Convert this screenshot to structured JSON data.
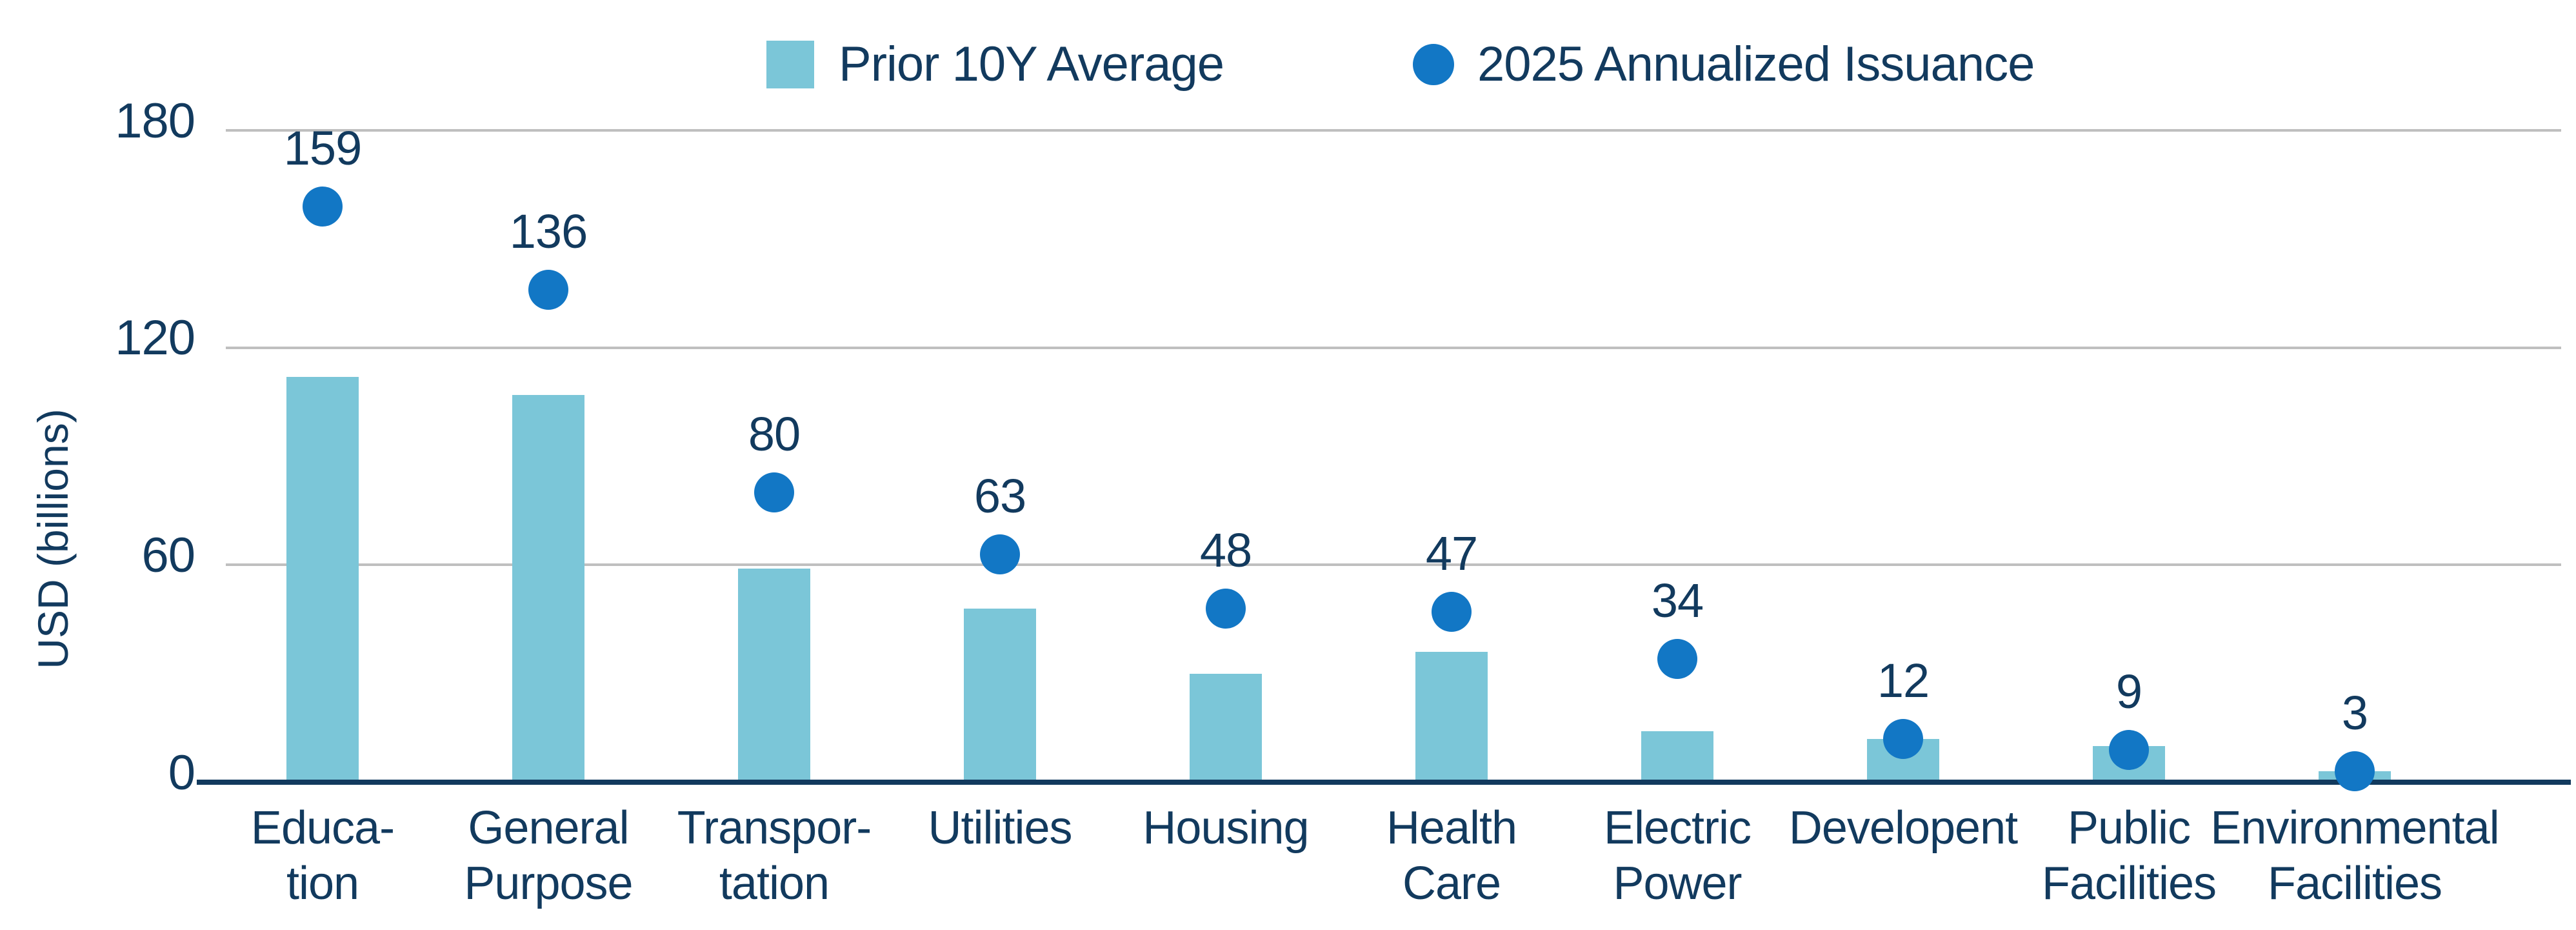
{
  "chart_data": {
    "type": "bar",
    "title": "",
    "ylabel": "USD (billions)",
    "ylim": [
      0,
      180
    ],
    "yticks": [
      0,
      60,
      120,
      180
    ],
    "grid": "horizontal",
    "legend_position": "top-center",
    "categories": [
      [
        "Educa-",
        "tion"
      ],
      [
        "General",
        "Purpose"
      ],
      [
        "Transpor-",
        "tation"
      ],
      [
        "Utilities"
      ],
      [
        "Housing"
      ],
      [
        "Health",
        "Care"
      ],
      [
        "Electric",
        "Power"
      ],
      [
        "Developent"
      ],
      [
        "Public",
        "Facilities"
      ],
      [
        "Environmental",
        "Facilities"
      ]
    ],
    "series": [
      {
        "name": "Prior 10Y Average",
        "type": "bar",
        "color": "#7BC6D8",
        "values": [
          112,
          107,
          59,
          48,
          30,
          36,
          14,
          12,
          10,
          3
        ]
      },
      {
        "name": "2025 Annualized Issuance",
        "type": "point",
        "color": "#1277C5",
        "values": [
          159,
          136,
          80,
          63,
          48,
          47,
          34,
          12,
          9,
          3
        ],
        "point_labels": [
          "159",
          "136",
          "80",
          "63",
          "48",
          "47",
          "34",
          "12",
          "9",
          "3"
        ]
      }
    ]
  },
  "colors": {
    "text_navy": "#123A5E",
    "axis_navy": "#123A5E",
    "gridline_gray": "#BFBFBF",
    "bar_fill": "#7BC6D8",
    "dot_fill": "#1277C5",
    "background": "#FFFFFF"
  }
}
